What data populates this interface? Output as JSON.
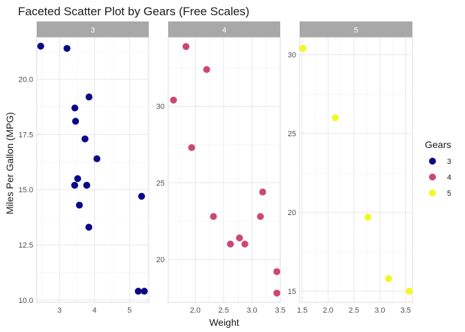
{
  "chart_data": {
    "type": "scatter",
    "title": "Faceted Scatter Plot by Gears (Free Scales)",
    "xlabel": "Weight",
    "ylabel": "Miles Per Gallon (MPG)",
    "legend": {
      "title": "Gears",
      "position": "right"
    },
    "grid": true,
    "facets": [
      {
        "label": "3",
        "color": "#0d0887",
        "xlim": [
          2.35,
          5.55
        ],
        "ylim": [
          9.9,
          21.9
        ],
        "xticks": [
          {
            "value": 3,
            "label": "3"
          },
          {
            "value": 4,
            "label": "4"
          },
          {
            "value": 5,
            "label": "5"
          }
        ],
        "yticks": [
          {
            "value": 10.0,
            "label": "10.0"
          },
          {
            "value": 12.5,
            "label": "12.5"
          },
          {
            "value": 15.0,
            "label": "15.0"
          },
          {
            "value": 17.5,
            "label": "17.5"
          },
          {
            "value": 20.0,
            "label": "20.0"
          }
        ],
        "points": [
          {
            "x": 2.465,
            "y": 21.5
          },
          {
            "x": 3.215,
            "y": 21.4
          },
          {
            "x": 3.44,
            "y": 18.7
          },
          {
            "x": 3.46,
            "y": 18.1
          },
          {
            "x": 3.57,
            "y": 14.3
          },
          {
            "x": 4.07,
            "y": 16.4
          },
          {
            "x": 3.73,
            "y": 17.3
          },
          {
            "x": 3.78,
            "y": 15.2
          },
          {
            "x": 5.25,
            "y": 10.4
          },
          {
            "x": 5.424,
            "y": 10.4
          },
          {
            "x": 5.345,
            "y": 14.7
          },
          {
            "x": 3.52,
            "y": 15.5
          },
          {
            "x": 3.435,
            "y": 15.2
          },
          {
            "x": 3.84,
            "y": 13.3
          },
          {
            "x": 3.845,
            "y": 19.2
          }
        ]
      },
      {
        "label": "4",
        "color": "#cc4778",
        "xlim": [
          1.52,
          3.5
        ],
        "ylim": [
          17.2,
          34.5
        ],
        "xticks": [
          {
            "value": 2.0,
            "label": "2.0"
          },
          {
            "value": 2.5,
            "label": "2.5"
          },
          {
            "value": 3.0,
            "label": "3.0"
          },
          {
            "value": 3.5,
            "label": "3.5"
          }
        ],
        "yticks": [
          {
            "value": 20,
            "label": "20"
          },
          {
            "value": 25,
            "label": "25"
          },
          {
            "value": 30,
            "label": "30"
          }
        ],
        "points": [
          {
            "x": 2.62,
            "y": 21.0
          },
          {
            "x": 2.875,
            "y": 21.0
          },
          {
            "x": 2.32,
            "y": 22.8
          },
          {
            "x": 3.19,
            "y": 24.4
          },
          {
            "x": 3.15,
            "y": 22.8
          },
          {
            "x": 3.44,
            "y": 19.2
          },
          {
            "x": 3.44,
            "y": 17.8
          },
          {
            "x": 2.2,
            "y": 32.4
          },
          {
            "x": 1.615,
            "y": 30.4
          },
          {
            "x": 1.835,
            "y": 33.9
          },
          {
            "x": 1.935,
            "y": 27.3
          },
          {
            "x": 2.78,
            "y": 21.4
          }
        ]
      },
      {
        "label": "5",
        "color": "#f0f921",
        "xlim": [
          1.45,
          3.63
        ],
        "ylim": [
          14.3,
          31.1
        ],
        "xticks": [
          {
            "value": 1.5,
            "label": "1.5"
          },
          {
            "value": 2.0,
            "label": "2.0"
          },
          {
            "value": 2.5,
            "label": "2.5"
          },
          {
            "value": 3.0,
            "label": "3.0"
          },
          {
            "value": 3.5,
            "label": "3.5"
          }
        ],
        "yticks": [
          {
            "value": 15,
            "label": "15"
          },
          {
            "value": 20,
            "label": "20"
          },
          {
            "value": 25,
            "label": "25"
          },
          {
            "value": 30,
            "label": "30"
          }
        ],
        "points": [
          {
            "x": 2.14,
            "y": 26.0
          },
          {
            "x": 1.513,
            "y": 30.4
          },
          {
            "x": 3.17,
            "y": 15.8
          },
          {
            "x": 2.77,
            "y": 19.7
          },
          {
            "x": 3.57,
            "y": 15.0
          }
        ]
      }
    ]
  }
}
